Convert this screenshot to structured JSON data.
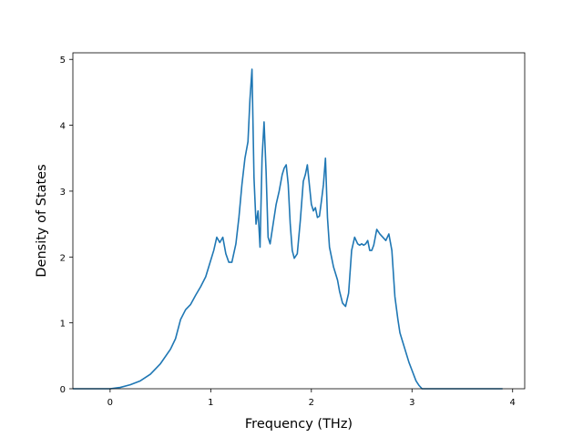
{
  "chart_data": {
    "type": "line",
    "title": "",
    "xlabel": "Frequency (THz)",
    "ylabel": "Density of States",
    "xlim": [
      -0.37,
      4.12
    ],
    "ylim": [
      0,
      5.1
    ],
    "xticks": [
      0,
      1,
      2,
      3,
      4
    ],
    "xtick_labels": [
      "0",
      "1",
      "2",
      "3",
      "4"
    ],
    "yticks": [
      0,
      1,
      2,
      3,
      4,
      5
    ],
    "ytick_labels": [
      "0",
      "1",
      "2",
      "3",
      "4",
      "5"
    ],
    "grid": false,
    "legend": "none",
    "line_color": "#1f77b4",
    "series": [
      {
        "x": [
          -0.37,
          0.0,
          0.1,
          0.2,
          0.3,
          0.4,
          0.5,
          0.6,
          0.65,
          0.7,
          0.75,
          0.8,
          0.85,
          0.9,
          0.95,
          1.0,
          1.03,
          1.06,
          1.09,
          1.12,
          1.15,
          1.18,
          1.21,
          1.25,
          1.28,
          1.31,
          1.34,
          1.37,
          1.39,
          1.41,
          1.43,
          1.45,
          1.47,
          1.49,
          1.51,
          1.53,
          1.55,
          1.57,
          1.59,
          1.62,
          1.65,
          1.68,
          1.71,
          1.73,
          1.75,
          1.77,
          1.79,
          1.81,
          1.83,
          1.86,
          1.89,
          1.92,
          1.94,
          1.96,
          1.98,
          2.0,
          2.02,
          2.04,
          2.06,
          2.08,
          2.1,
          2.12,
          2.14,
          2.16,
          2.18,
          2.2,
          2.22,
          2.24,
          2.26,
          2.28,
          2.31,
          2.34,
          2.37,
          2.4,
          2.43,
          2.46,
          2.48,
          2.5,
          2.52,
          2.54,
          2.56,
          2.58,
          2.6,
          2.62,
          2.65,
          2.68,
          2.71,
          2.74,
          2.77,
          2.8,
          2.83,
          2.86,
          2.88,
          2.91,
          2.94,
          2.97,
          3.0,
          3.02,
          3.04,
          3.07,
          3.1,
          3.15,
          3.2,
          3.3,
          3.4,
          3.5,
          3.55,
          3.57,
          3.6,
          3.9
        ],
        "y": [
          0.0,
          0.0,
          0.02,
          0.06,
          0.12,
          0.22,
          0.38,
          0.6,
          0.76,
          1.05,
          1.2,
          1.28,
          1.42,
          1.55,
          1.7,
          1.95,
          2.1,
          2.3,
          2.22,
          2.3,
          2.05,
          1.92,
          1.92,
          2.2,
          2.6,
          3.1,
          3.5,
          3.75,
          4.4,
          4.85,
          3.2,
          2.5,
          2.7,
          2.15,
          3.5,
          4.05,
          3.3,
          2.3,
          2.2,
          2.5,
          2.8,
          3.0,
          3.25,
          3.35,
          3.4,
          3.1,
          2.5,
          2.1,
          1.98,
          2.05,
          2.55,
          3.15,
          3.25,
          3.4,
          3.1,
          2.8,
          2.7,
          2.75,
          2.6,
          2.62,
          2.85,
          3.1,
          3.5,
          2.6,
          2.15,
          2.0,
          1.85,
          1.75,
          1.65,
          1.48,
          1.3,
          1.25,
          1.45,
          2.1,
          2.3,
          2.2,
          2.18,
          2.2,
          2.18,
          2.2,
          2.25,
          2.1,
          2.1,
          2.18,
          2.42,
          2.35,
          2.3,
          2.25,
          2.35,
          2.1,
          1.4,
          1.05,
          0.85,
          0.7,
          0.55,
          0.4,
          0.28,
          0.2,
          0.12,
          0.05,
          0.0,
          0.0,
          0.0,
          0.0,
          0.0,
          0.0,
          0.0,
          0.0,
          0.0,
          0.0
        ]
      }
    ]
  }
}
